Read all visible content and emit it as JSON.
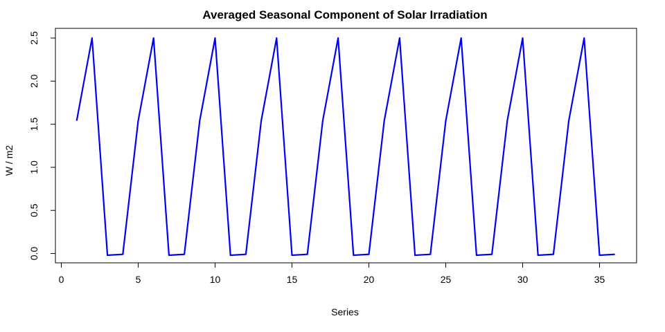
{
  "chart_data": {
    "type": "line",
    "title": "Averaged Seasonal Component of Solar Irradiation",
    "xlabel": "Series",
    "ylabel": "W / m2",
    "xlim": [
      0,
      37
    ],
    "ylim": [
      -0.1,
      2.6
    ],
    "x_ticks": [
      0,
      5,
      10,
      15,
      20,
      25,
      30,
      35
    ],
    "y_ticks": [
      0.0,
      0.5,
      1.0,
      1.5,
      2.0,
      2.5
    ],
    "x_tick_labels": [
      "0",
      "5",
      "10",
      "15",
      "20",
      "25",
      "30",
      "35"
    ],
    "y_tick_labels": [
      "0.0",
      "0.5",
      "1.0",
      "1.5",
      "2.0",
      "2.5"
    ],
    "grid": false,
    "series": [
      {
        "color": "#0000ff",
        "x": [
          1,
          2,
          3,
          4,
          5,
          6,
          7,
          8,
          9,
          10,
          11,
          12,
          13,
          14,
          15,
          16,
          17,
          18,
          19,
          20,
          21,
          22,
          23,
          24,
          25,
          26,
          27,
          28,
          29,
          30,
          31,
          32,
          33,
          34,
          35,
          36
        ],
        "values": [
          1.54,
          2.5,
          -0.02,
          -0.01,
          1.54,
          2.5,
          -0.02,
          -0.01,
          1.54,
          2.5,
          -0.02,
          -0.01,
          1.54,
          2.5,
          -0.02,
          -0.01,
          1.54,
          2.5,
          -0.02,
          -0.01,
          1.54,
          2.5,
          -0.02,
          -0.01,
          1.54,
          2.5,
          -0.02,
          -0.01,
          1.54,
          2.5,
          -0.02,
          -0.01,
          1.54,
          2.5,
          -0.02,
          -0.01
        ]
      }
    ]
  }
}
